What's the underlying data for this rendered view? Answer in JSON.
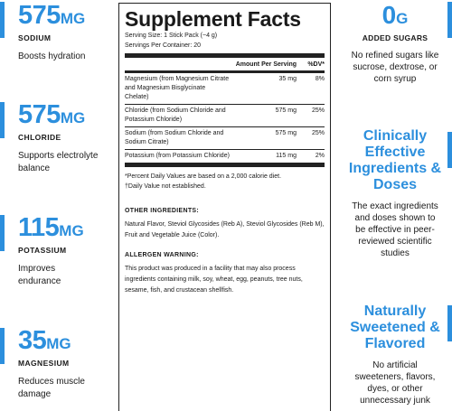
{
  "colors": {
    "accent": "#2c8fdd",
    "text": "#1a1a1a"
  },
  "left_stats": [
    {
      "value": "575",
      "unit": "MG",
      "name": "SODIUM",
      "desc": "Boosts hydration"
    },
    {
      "value": "575",
      "unit": "MG",
      "name": "CHLORIDE",
      "desc": "Supports electrolyte balance"
    },
    {
      "value": "115",
      "unit": "MG",
      "name": "POTASSIUM",
      "desc": "Improves endurance"
    },
    {
      "value": "35",
      "unit": "MG",
      "name": "MAGNESIUM",
      "desc": "Reduces muscle damage"
    }
  ],
  "facts": {
    "title": "Supplement Facts",
    "serving_size": "Serving Size: 1 Stick Pack (~4 g)",
    "servings_per_container": "Servings Per Container: 20",
    "col_amount": "Amount Per Serving",
    "col_dv": "%DV*",
    "rows": [
      {
        "name": "Magnesium (from Magnesium Citrate and Magnesium Bisglycinate Chelate)",
        "amount": "35 mg",
        "dv": "8%"
      },
      {
        "name": "Chloride (from Sodium Chloride and Potassium Chloride)",
        "amount": "575 mg",
        "dv": "25%"
      },
      {
        "name": "Sodium (from Sodium Chloride and Sodium Citrate)",
        "amount": "575 mg",
        "dv": "25%"
      },
      {
        "name": "Potassium (from Potassium Chloride)",
        "amount": "115 mg",
        "dv": "2%"
      }
    ],
    "footnote1": "*Percent Daily Values are based on a 2,000 calorie diet.",
    "footnote2": "†Daily Value not established.",
    "other_label": "OTHER INGREDIENTS:",
    "other_text": "Natural Flavor, Steviol Glycosides (Reb A), Steviol Glycosides (Reb M), Fruit and Vegetable Juice (Color).",
    "allergen_label": "ALLERGEN WARNING:",
    "allergen_text": "This product was produced in a facility that may also process ingredients containing milk, soy, wheat, egg, peanuts, tree nuts, sesame, fish, and crustacean shellfish."
  },
  "right": {
    "sugar_value": "0",
    "sugar_unit": "G",
    "sugar_name": "ADDED SUGARS",
    "sugar_desc": "No refined sugars like sucrose, dextrose, or corn syrup",
    "effective_head": "Clinically Effective Ingredients & Doses",
    "effective_desc": "The exact ingredients and doses shown to be effective in peer-reviewed scientific studies",
    "sweet_head": "Naturally Sweetened & Flavored",
    "sweet_desc": "No artificial sweeteners, flavors, dyes, or other unnecessary junk"
  }
}
